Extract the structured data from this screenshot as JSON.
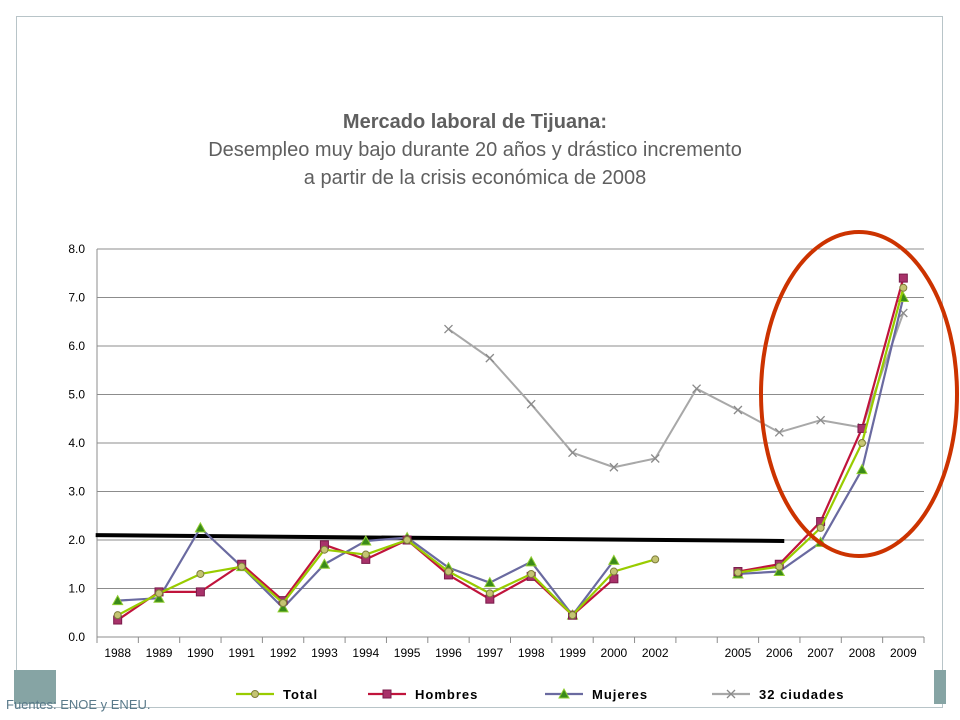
{
  "title": {
    "line1": "Mercado laboral de Tijuana:",
    "line2": "Desempleo muy bajo durante 20 años y drástico incremento",
    "line3": "a partir de la crisis económica de 2008"
  },
  "source": "Fuentes: ENOE y ENEU.",
  "chart_data": {
    "type": "line",
    "categories": [
      "1988",
      "1989",
      "1990",
      "1991",
      "1992",
      "1993",
      "1994",
      "1995",
      "1996",
      "1997",
      "1998",
      "1999",
      "2000",
      "2002",
      "",
      "2005",
      "2006",
      "2007",
      "2008",
      "2009"
    ],
    "ylim": [
      0,
      8
    ],
    "yticks": [
      "0.0",
      "1.0",
      "2.0",
      "3.0",
      "4.0",
      "5.0",
      "6.0",
      "7.0",
      "8.0"
    ],
    "grid": true,
    "legend_position": "bottom",
    "series": [
      {
        "name": "Total",
        "color": "#99cc00",
        "marker": "circle",
        "values": [
          0.45,
          0.9,
          1.3,
          1.45,
          0.7,
          1.8,
          1.7,
          2.0,
          1.35,
          0.9,
          1.3,
          0.45,
          1.35,
          1.6,
          null,
          1.33,
          1.45,
          2.25,
          4.0,
          7.2
        ]
      },
      {
        "name": "Hombres",
        "color": "#c0143c",
        "marker": "square",
        "values": [
          0.35,
          0.93,
          0.93,
          1.5,
          0.75,
          1.9,
          1.6,
          2.0,
          1.28,
          0.78,
          1.25,
          0.45,
          1.2,
          null,
          null,
          1.35,
          1.5,
          2.38,
          4.3,
          7.4
        ]
      },
      {
        "name": "Mujeres",
        "color": "#6a6aa0",
        "marker": "triangle",
        "values": [
          0.75,
          0.8,
          2.25,
          1.45,
          0.6,
          1.5,
          1.98,
          2.05,
          1.43,
          1.12,
          1.55,
          0.45,
          1.58,
          null,
          null,
          1.3,
          1.35,
          1.95,
          3.45,
          7.0
        ]
      },
      {
        "name": "32 ciudades",
        "color": "#a8a8a8",
        "marker": "x",
        "values": [
          null,
          null,
          null,
          null,
          null,
          null,
          null,
          null,
          6.35,
          5.75,
          4.8,
          3.8,
          3.5,
          3.68,
          5.12,
          4.68,
          4.22,
          4.47,
          4.32,
          6.68
        ]
      }
    ],
    "annotations": {
      "reference_line_value": 2.0,
      "reference_line_color": "#000000",
      "highlight_ellipse_color": "#cc3300"
    }
  }
}
